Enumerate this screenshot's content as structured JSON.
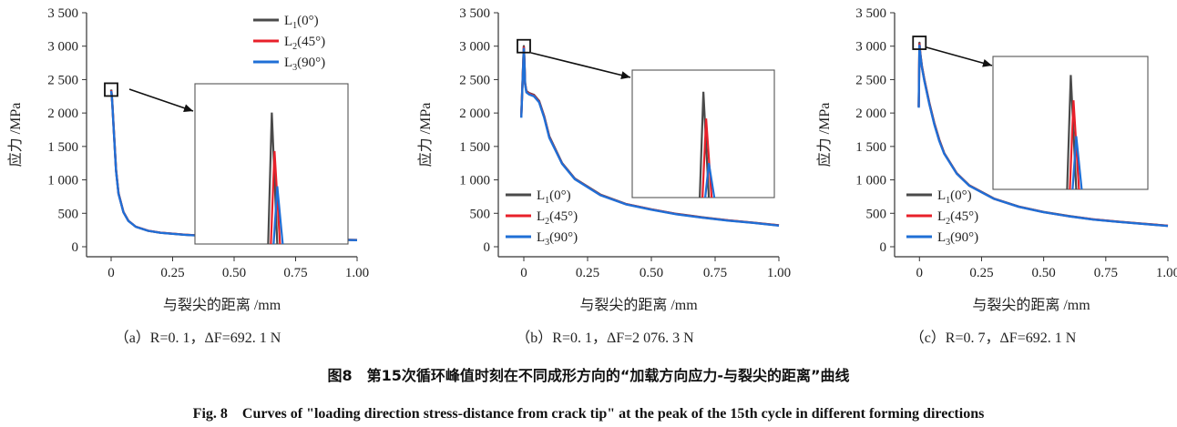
{
  "figure": {
    "caption_zh": "图8　第15次循环峰值时刻在不同成形方向的“加载方向应力-与裂尖的距离”曲线",
    "caption_en": "Fig. 8　Curves of \"loading direction stress-distance from crack tip\" at the peak of the 15th cycle in different forming directions"
  },
  "colors": {
    "L1": "#4a4a4a",
    "L2": "#e8202a",
    "L3": "#1f6fd6"
  },
  "chart_data": [
    {
      "type": "line",
      "panel": "a",
      "caption": "（a）R=0. 1，ΔF=692. 1 N",
      "xlabel": "与裂尖的距离 /mm",
      "ylabel": "应力 /MPa",
      "xlim": [
        -0.1,
        1.0
      ],
      "ylim": [
        -150,
        3500
      ],
      "xticks": [
        0,
        0.25,
        0.5,
        0.75,
        1.0
      ],
      "xtick_labels": [
        "0",
        "0.25",
        "0.50",
        "0.75",
        "1.00"
      ],
      "yticks": [
        0,
        500,
        1000,
        1500,
        2000,
        2500,
        3000,
        3500
      ],
      "ytick_labels": [
        "0",
        "500",
        "1 000",
        "1 500",
        "2 000",
        "2 500",
        "3 000",
        "3 500"
      ],
      "legend_position": "top-right",
      "series": [
        {
          "name": "L",
          "sub": "1",
          "suffix": "(0°)",
          "key": "L1",
          "x": [
            0,
            0.002,
            0.005,
            0.01,
            0.02,
            0.03,
            0.05,
            0.07,
            0.1,
            0.15,
            0.2,
            0.3,
            0.4,
            0.5,
            0.6,
            0.7,
            0.8,
            0.9,
            1.0
          ],
          "y": [
            2350,
            2300,
            2150,
            1800,
            1150,
            800,
            520,
            390,
            300,
            240,
            210,
            180,
            160,
            148,
            135,
            125,
            118,
            108,
            100
          ]
        },
        {
          "name": "L",
          "sub": "2",
          "suffix": "(45°)",
          "key": "L2",
          "x": [
            0,
            0.002,
            0.005,
            0.01,
            0.02,
            0.03,
            0.05,
            0.07,
            0.1,
            0.15,
            0.2,
            0.3,
            0.4,
            0.5,
            0.6,
            0.7,
            0.8,
            0.9,
            1.0
          ],
          "y": [
            2340,
            2290,
            2140,
            1790,
            1140,
            795,
            518,
            388,
            299,
            239,
            209,
            179,
            159,
            147,
            134,
            124,
            117,
            107,
            99
          ]
        },
        {
          "name": "L",
          "sub": "3",
          "suffix": "(90°)",
          "key": "L3",
          "x": [
            0,
            0.002,
            0.005,
            0.01,
            0.02,
            0.03,
            0.05,
            0.07,
            0.1,
            0.15,
            0.2,
            0.3,
            0.4,
            0.5,
            0.6,
            0.7,
            0.8,
            0.9,
            1.0
          ],
          "y": [
            2330,
            2280,
            2130,
            1780,
            1130,
            790,
            515,
            385,
            298,
            238,
            208,
            178,
            158,
            146,
            133,
            123,
            116,
            106,
            98
          ]
        }
      ],
      "inset": {
        "peaks": [
          {
            "key": "L1",
            "peak": 0.82
          },
          {
            "key": "L2",
            "peak": 0.58
          },
          {
            "key": "L3",
            "peak": 0.36
          }
        ]
      }
    },
    {
      "type": "line",
      "panel": "b",
      "caption": "（b）R=0. 1，ΔF=2 076. 3 N",
      "xlabel": "与裂尖的距离 /mm",
      "ylabel": "应力 /MPa",
      "xlim": [
        -0.1,
        1.0
      ],
      "ylim": [
        -150,
        3500
      ],
      "xticks": [
        0,
        0.25,
        0.5,
        0.75,
        1.0
      ],
      "xtick_labels": [
        "0",
        "0.25",
        "0.50",
        "0.75",
        "1.00"
      ],
      "yticks": [
        0,
        500,
        1000,
        1500,
        2000,
        2500,
        3000,
        3500
      ],
      "ytick_labels": [
        "0",
        "500",
        "1 000",
        "1 500",
        "2 000",
        "2 500",
        "3 000",
        "3 500"
      ],
      "legend_position": "bottom-left",
      "series": [
        {
          "name": "L",
          "sub": "1",
          "suffix": "(0°)",
          "key": "L1",
          "x": [
            -0.01,
            0,
            0.002,
            0.005,
            0.01,
            0.02,
            0.04,
            0.06,
            0.08,
            0.1,
            0.15,
            0.2,
            0.3,
            0.4,
            0.5,
            0.6,
            0.7,
            0.8,
            0.9,
            1.0
          ],
          "y": [
            1950,
            3000,
            2800,
            2450,
            2330,
            2300,
            2270,
            2180,
            1950,
            1650,
            1250,
            1020,
            780,
            640,
            560,
            490,
            440,
            395,
            360,
            320
          ]
        },
        {
          "name": "L",
          "sub": "2",
          "suffix": "(45°)",
          "key": "L2",
          "x": [
            -0.01,
            0,
            0.002,
            0.005,
            0.01,
            0.02,
            0.04,
            0.06,
            0.08,
            0.1,
            0.15,
            0.2,
            0.3,
            0.4,
            0.5,
            0.6,
            0.7,
            0.8,
            0.9,
            1.0
          ],
          "y": [
            1940,
            2980,
            2790,
            2440,
            2320,
            2290,
            2260,
            2170,
            1940,
            1640,
            1245,
            1015,
            775,
            637,
            557,
            487,
            437,
            393,
            358,
            318
          ]
        },
        {
          "name": "L",
          "sub": "3",
          "suffix": "(90°)",
          "key": "L3",
          "x": [
            -0.01,
            0,
            0.002,
            0.005,
            0.01,
            0.02,
            0.04,
            0.06,
            0.08,
            0.1,
            0.15,
            0.2,
            0.3,
            0.4,
            0.5,
            0.6,
            0.7,
            0.8,
            0.9,
            1.0
          ],
          "y": [
            1930,
            2960,
            2780,
            2430,
            2310,
            2280,
            2250,
            2160,
            1930,
            1630,
            1240,
            1010,
            770,
            634,
            554,
            484,
            434,
            391,
            356,
            316
          ]
        }
      ],
      "inset": {
        "peaks": [
          {
            "key": "L1",
            "peak": 0.83
          },
          {
            "key": "L2",
            "peak": 0.62
          },
          {
            "key": "L3",
            "peak": 0.27
          }
        ]
      }
    },
    {
      "type": "line",
      "panel": "c",
      "caption": "（c）R=0. 7，ΔF=692. 1 N",
      "xlabel": "与裂尖的距离 /mm",
      "ylabel": "应力 /MPa",
      "xlim": [
        -0.1,
        1.0
      ],
      "ylim": [
        -150,
        3500
      ],
      "xticks": [
        0,
        0.25,
        0.5,
        0.75,
        1.0
      ],
      "xtick_labels": [
        "0",
        "0.25",
        "0.50",
        "0.75",
        "1.00"
      ],
      "yticks": [
        0,
        500,
        1000,
        1500,
        2000,
        2500,
        3000,
        3500
      ],
      "ytick_labels": [
        "0",
        "500",
        "1 000",
        "1 500",
        "2 000",
        "2 500",
        "3 000",
        "3 500"
      ],
      "legend_position": "bottom-left",
      "series": [
        {
          "name": "L",
          "sub": "1",
          "suffix": "(0°)",
          "key": "L1",
          "x": [
            -0.003,
            0,
            0.002,
            0.005,
            0.01,
            0.02,
            0.04,
            0.06,
            0.08,
            0.1,
            0.15,
            0.2,
            0.3,
            0.4,
            0.5,
            0.6,
            0.7,
            0.8,
            0.9,
            1.0
          ],
          "y": [
            2100,
            3050,
            2950,
            2850,
            2700,
            2500,
            2150,
            1850,
            1600,
            1400,
            1100,
            920,
            720,
            600,
            520,
            460,
            410,
            375,
            345,
            315
          ]
        },
        {
          "name": "L",
          "sub": "2",
          "suffix": "(45°)",
          "key": "L2",
          "x": [
            -0.003,
            0,
            0.002,
            0.005,
            0.01,
            0.02,
            0.04,
            0.06,
            0.08,
            0.1,
            0.15,
            0.2,
            0.3,
            0.4,
            0.5,
            0.6,
            0.7,
            0.8,
            0.9,
            1.0
          ],
          "y": [
            2090,
            3030,
            2940,
            2840,
            2690,
            2490,
            2140,
            1840,
            1590,
            1395,
            1096,
            917,
            718,
            598,
            518,
            458,
            408,
            373,
            343,
            313
          ]
        },
        {
          "name": "L",
          "sub": "3",
          "suffix": "(90°)",
          "key": "L3",
          "x": [
            -0.003,
            0,
            0.002,
            0.005,
            0.01,
            0.02,
            0.04,
            0.06,
            0.08,
            0.1,
            0.15,
            0.2,
            0.3,
            0.4,
            0.5,
            0.6,
            0.7,
            0.8,
            0.9,
            1.0
          ],
          "y": [
            2080,
            3010,
            2930,
            2830,
            2680,
            2480,
            2130,
            1830,
            1580,
            1390,
            1092,
            914,
            716,
            596,
            516,
            456,
            406,
            371,
            341,
            311
          ]
        }
      ],
      "inset": {
        "peaks": [
          {
            "key": "L1",
            "peak": 0.86
          },
          {
            "key": "L2",
            "peak": 0.67
          },
          {
            "key": "L3",
            "peak": 0.4
          }
        ]
      }
    }
  ]
}
